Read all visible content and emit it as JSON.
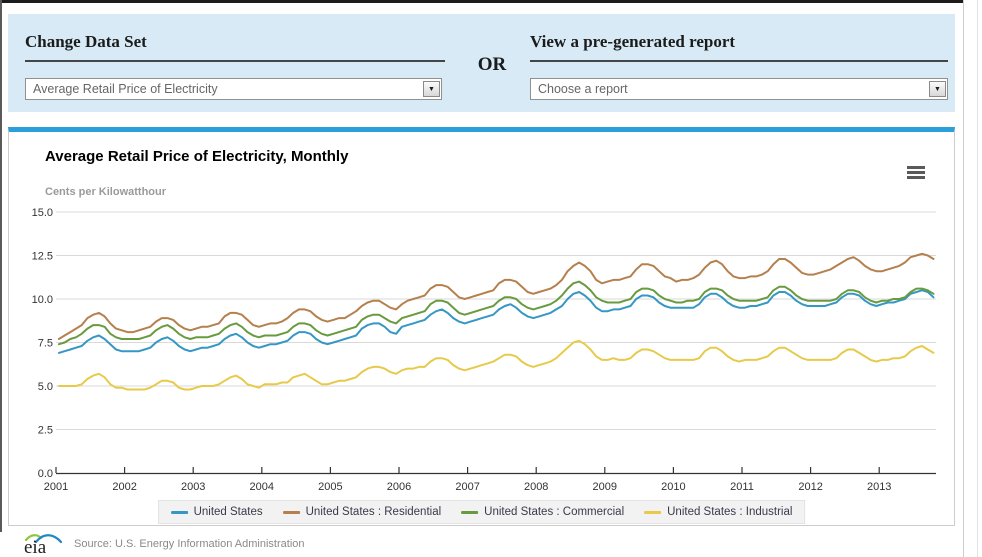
{
  "panel": {
    "change_dataset_heading": "Change Data Set",
    "dataset_select_value": "Average Retail Price of Electricity",
    "or_label": "OR",
    "report_heading": "View a pre-generated report",
    "report_select_value": "Choose a report"
  },
  "chart": {
    "title": "Average Retail Price of Electricity, Monthly",
    "y_caption": "Cents per Kilowatthour",
    "menu_icon": "hamburger-menu-icon"
  },
  "footer": {
    "logo_text": "eia",
    "source": "Source: U.S. Energy Information Administration"
  },
  "colors": {
    "accent_bar": "#2c9ed9",
    "panel_bg": "#d8eaf5",
    "grid": "#d9d9d9",
    "axis": "#333333",
    "legend_bg": "#f2f2f2"
  },
  "chart_data": {
    "type": "line",
    "title": "Average Retail Price of Electricity, Monthly",
    "ylabel": "Cents per Kilowatthour",
    "xlabel": "",
    "ylim": [
      0,
      15
    ],
    "ytick_labels": [
      "0.0",
      "2.5",
      "5.0",
      "7.5",
      "10.0",
      "12.5",
      "15.0"
    ],
    "ytick_values": [
      0,
      2.5,
      5,
      7.5,
      10,
      12.5,
      15
    ],
    "x_year_labels": [
      "2001",
      "2002",
      "2003",
      "2004",
      "2005",
      "2006",
      "2007",
      "2008",
      "2009",
      "2010",
      "2011",
      "2012",
      "2013"
    ],
    "frequency": "monthly",
    "start_month": "2001-01",
    "end_month": "2013-10",
    "grid": true,
    "legend_position": "bottom",
    "series": [
      {
        "name": "United States",
        "color": "#3597c4",
        "values": [
          6.9,
          7.0,
          7.1,
          7.2,
          7.3,
          7.6,
          7.8,
          7.9,
          7.7,
          7.4,
          7.1,
          7.0,
          7.0,
          7.0,
          7.0,
          7.1,
          7.2,
          7.5,
          7.7,
          7.8,
          7.6,
          7.3,
          7.1,
          7.0,
          7.1,
          7.2,
          7.2,
          7.3,
          7.4,
          7.7,
          7.9,
          8.0,
          7.8,
          7.5,
          7.3,
          7.2,
          7.3,
          7.4,
          7.4,
          7.5,
          7.6,
          7.9,
          8.1,
          8.1,
          8.0,
          7.7,
          7.5,
          7.4,
          7.5,
          7.6,
          7.7,
          7.8,
          7.9,
          8.3,
          8.5,
          8.6,
          8.6,
          8.4,
          8.1,
          8.0,
          8.4,
          8.5,
          8.6,
          8.7,
          8.8,
          9.1,
          9.3,
          9.4,
          9.2,
          8.9,
          8.7,
          8.6,
          8.7,
          8.8,
          8.9,
          9.0,
          9.1,
          9.4,
          9.6,
          9.7,
          9.5,
          9.2,
          9.0,
          8.9,
          9.0,
          9.1,
          9.2,
          9.4,
          9.6,
          10.0,
          10.3,
          10.4,
          10.2,
          9.9,
          9.5,
          9.3,
          9.3,
          9.4,
          9.4,
          9.5,
          9.6,
          10.0,
          10.2,
          10.2,
          10.1,
          9.8,
          9.6,
          9.5,
          9.5,
          9.5,
          9.5,
          9.5,
          9.7,
          10.1,
          10.3,
          10.3,
          10.1,
          9.8,
          9.6,
          9.5,
          9.5,
          9.6,
          9.6,
          9.7,
          9.8,
          10.2,
          10.4,
          10.4,
          10.2,
          9.9,
          9.7,
          9.6,
          9.6,
          9.6,
          9.6,
          9.7,
          9.8,
          10.1,
          10.3,
          10.3,
          10.2,
          9.9,
          9.7,
          9.6,
          9.7,
          9.8,
          9.8,
          9.9,
          10.0,
          10.3,
          10.4,
          10.5,
          10.4,
          10.1
        ]
      },
      {
        "name": "United States : Residential",
        "color": "#b5804d",
        "values": [
          7.7,
          7.9,
          8.1,
          8.3,
          8.5,
          8.9,
          9.1,
          9.2,
          9.0,
          8.6,
          8.3,
          8.2,
          8.1,
          8.1,
          8.2,
          8.3,
          8.4,
          8.7,
          8.9,
          8.9,
          8.8,
          8.5,
          8.3,
          8.2,
          8.3,
          8.4,
          8.4,
          8.5,
          8.6,
          9.0,
          9.2,
          9.2,
          9.1,
          8.8,
          8.5,
          8.4,
          8.5,
          8.6,
          8.6,
          8.7,
          8.9,
          9.2,
          9.4,
          9.4,
          9.3,
          9.0,
          8.8,
          8.7,
          8.8,
          8.9,
          8.9,
          9.1,
          9.3,
          9.6,
          9.8,
          9.9,
          9.9,
          9.7,
          9.5,
          9.4,
          9.7,
          9.9,
          10.0,
          10.1,
          10.2,
          10.6,
          10.8,
          10.8,
          10.7,
          10.4,
          10.1,
          10.0,
          10.1,
          10.2,
          10.3,
          10.4,
          10.5,
          10.9,
          11.1,
          11.1,
          11.0,
          10.7,
          10.4,
          10.3,
          10.4,
          10.5,
          10.6,
          10.8,
          11.1,
          11.6,
          11.9,
          12.1,
          11.9,
          11.6,
          11.1,
          10.9,
          11.0,
          11.1,
          11.1,
          11.2,
          11.3,
          11.7,
          12.0,
          12.0,
          11.9,
          11.6,
          11.3,
          11.2,
          11.0,
          11.1,
          11.1,
          11.2,
          11.4,
          11.8,
          12.1,
          12.2,
          12.0,
          11.6,
          11.3,
          11.2,
          11.2,
          11.3,
          11.3,
          11.4,
          11.6,
          12.0,
          12.3,
          12.3,
          12.1,
          11.8,
          11.5,
          11.4,
          11.4,
          11.5,
          11.6,
          11.7,
          11.9,
          12.1,
          12.3,
          12.4,
          12.2,
          11.9,
          11.7,
          11.6,
          11.6,
          11.7,
          11.8,
          11.9,
          12.1,
          12.4,
          12.5,
          12.6,
          12.5,
          12.3
        ]
      },
      {
        "name": "United States : Commercial",
        "color": "#689b3f",
        "values": [
          7.4,
          7.5,
          7.7,
          7.8,
          8.0,
          8.3,
          8.5,
          8.5,
          8.4,
          8.0,
          7.8,
          7.7,
          7.7,
          7.7,
          7.7,
          7.8,
          7.9,
          8.2,
          8.4,
          8.5,
          8.3,
          8.0,
          7.8,
          7.7,
          7.8,
          7.8,
          7.8,
          7.9,
          8.0,
          8.3,
          8.5,
          8.6,
          8.4,
          8.1,
          7.9,
          7.8,
          7.9,
          7.9,
          7.9,
          8.0,
          8.1,
          8.4,
          8.6,
          8.6,
          8.5,
          8.2,
          8.0,
          7.9,
          8.0,
          8.1,
          8.2,
          8.3,
          8.4,
          8.8,
          9.0,
          9.1,
          9.1,
          8.9,
          8.7,
          8.6,
          8.9,
          9.0,
          9.1,
          9.2,
          9.3,
          9.7,
          9.9,
          9.9,
          9.8,
          9.5,
          9.2,
          9.1,
          9.2,
          9.3,
          9.4,
          9.5,
          9.6,
          9.9,
          10.1,
          10.1,
          10.0,
          9.7,
          9.5,
          9.4,
          9.5,
          9.6,
          9.7,
          9.9,
          10.2,
          10.6,
          10.9,
          11.0,
          10.8,
          10.5,
          10.1,
          9.9,
          9.8,
          9.8,
          9.8,
          9.9,
          10.0,
          10.4,
          10.6,
          10.6,
          10.5,
          10.2,
          10.0,
          9.9,
          9.8,
          9.8,
          9.9,
          9.9,
          10.0,
          10.4,
          10.6,
          10.6,
          10.5,
          10.2,
          10.0,
          9.9,
          9.9,
          9.9,
          9.9,
          10.0,
          10.1,
          10.5,
          10.7,
          10.7,
          10.5,
          10.2,
          10.0,
          9.9,
          9.9,
          9.9,
          9.9,
          9.9,
          10.0,
          10.3,
          10.5,
          10.5,
          10.4,
          10.1,
          9.9,
          9.8,
          9.9,
          9.9,
          10.0,
          10.0,
          10.1,
          10.4,
          10.6,
          10.6,
          10.5,
          10.3
        ]
      },
      {
        "name": "United States : Industrial",
        "color": "#e7ca4a",
        "values": [
          5.0,
          5.0,
          5.0,
          5.0,
          5.1,
          5.4,
          5.6,
          5.7,
          5.5,
          5.1,
          4.9,
          4.9,
          4.8,
          4.8,
          4.8,
          4.8,
          4.9,
          5.1,
          5.3,
          5.3,
          5.2,
          4.9,
          4.8,
          4.8,
          4.9,
          5.0,
          5.0,
          5.0,
          5.1,
          5.3,
          5.5,
          5.6,
          5.4,
          5.1,
          5.0,
          4.9,
          5.1,
          5.1,
          5.1,
          5.2,
          5.2,
          5.5,
          5.6,
          5.7,
          5.5,
          5.3,
          5.1,
          5.1,
          5.2,
          5.3,
          5.3,
          5.4,
          5.5,
          5.8,
          6.0,
          6.1,
          6.1,
          6.0,
          5.8,
          5.7,
          5.9,
          6.0,
          6.0,
          6.1,
          6.1,
          6.4,
          6.6,
          6.6,
          6.5,
          6.2,
          6.0,
          5.9,
          6.0,
          6.1,
          6.2,
          6.3,
          6.4,
          6.6,
          6.8,
          6.8,
          6.7,
          6.4,
          6.2,
          6.1,
          6.2,
          6.3,
          6.4,
          6.6,
          6.9,
          7.2,
          7.5,
          7.6,
          7.4,
          7.1,
          6.7,
          6.5,
          6.5,
          6.6,
          6.5,
          6.5,
          6.6,
          6.9,
          7.1,
          7.1,
          7.0,
          6.8,
          6.6,
          6.5,
          6.5,
          6.5,
          6.5,
          6.5,
          6.6,
          7.0,
          7.2,
          7.2,
          7.0,
          6.7,
          6.5,
          6.4,
          6.5,
          6.5,
          6.5,
          6.6,
          6.7,
          7.0,
          7.2,
          7.2,
          7.0,
          6.8,
          6.6,
          6.5,
          6.5,
          6.5,
          6.5,
          6.5,
          6.6,
          6.9,
          7.1,
          7.1,
          6.9,
          6.7,
          6.5,
          6.4,
          6.5,
          6.5,
          6.6,
          6.6,
          6.7,
          7.0,
          7.2,
          7.3,
          7.1,
          6.9
        ]
      }
    ]
  }
}
